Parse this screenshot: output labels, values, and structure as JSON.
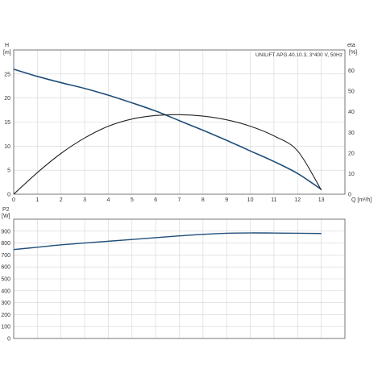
{
  "colors": {
    "head_curve": "#1f4e79",
    "eta_curve": "#222222",
    "power_curve": "#1f4e79",
    "grid": "#d4d4d4",
    "frame": "#555555"
  },
  "chart_data": [
    {
      "type": "line",
      "legend": "UNILIFT APG.40.10.3, 3*400 V, 50Hz",
      "legend_placement": "top-right",
      "xlabel": "Q [m³/h]",
      "ylabel_left": "H",
      "ylabel_left_unit": "[m]",
      "ylabel_right": "eta",
      "ylabel_right_unit": "[%]",
      "xlim": [
        0,
        14
      ],
      "ylim_left": [
        0,
        30
      ],
      "ylim_right": [
        0,
        70
      ],
      "grid": true,
      "x_ticks": [
        "0",
        "1",
        "2",
        "3",
        "4",
        "5",
        "6",
        "7",
        "8",
        "9",
        "10",
        "11",
        "12",
        "13"
      ],
      "y_ticks_left": [
        "0",
        "5",
        "10",
        "15",
        "20",
        "25"
      ],
      "y_ticks_right": [
        "0",
        "10",
        "20",
        "30",
        "40",
        "50",
        "60"
      ],
      "series": [
        {
          "key": "head",
          "axis": "left",
          "x": [
            0,
            1,
            2,
            3,
            4,
            5,
            6,
            7,
            8,
            9,
            10,
            11,
            12,
            13
          ],
          "y": [
            26.0,
            24.5,
            23.2,
            22.0,
            20.6,
            19.0,
            17.3,
            15.3,
            13.3,
            11.2,
            9.0,
            6.8,
            4.3,
            1.0
          ]
        },
        {
          "key": "eta",
          "axis": "right",
          "x": [
            0,
            1,
            2,
            3,
            4,
            5,
            6,
            7,
            8,
            9,
            10,
            11,
            12,
            13
          ],
          "y": [
            0,
            10.5,
            19.8,
            27.3,
            33.0,
            36.5,
            38.2,
            38.6,
            37.9,
            36.1,
            33.0,
            28.3,
            21.0,
            2.0
          ]
        }
      ]
    },
    {
      "type": "line",
      "ylabel": "P2",
      "ylabel_unit": "[W]",
      "xlim": [
        0,
        14
      ],
      "ylim": [
        0,
        1000
      ],
      "grid": true,
      "y_ticks": [
        "0",
        "100",
        "200",
        "300",
        "400",
        "500",
        "600",
        "700",
        "800",
        "900"
      ],
      "series": [
        {
          "key": "p2",
          "x": [
            0,
            1,
            2,
            3,
            4,
            5,
            6,
            7,
            8,
            9,
            10,
            11,
            12,
            13
          ],
          "y": [
            745,
            765,
            785,
            800,
            815,
            830,
            845,
            860,
            873,
            882,
            885,
            884,
            882,
            880
          ]
        }
      ]
    }
  ]
}
